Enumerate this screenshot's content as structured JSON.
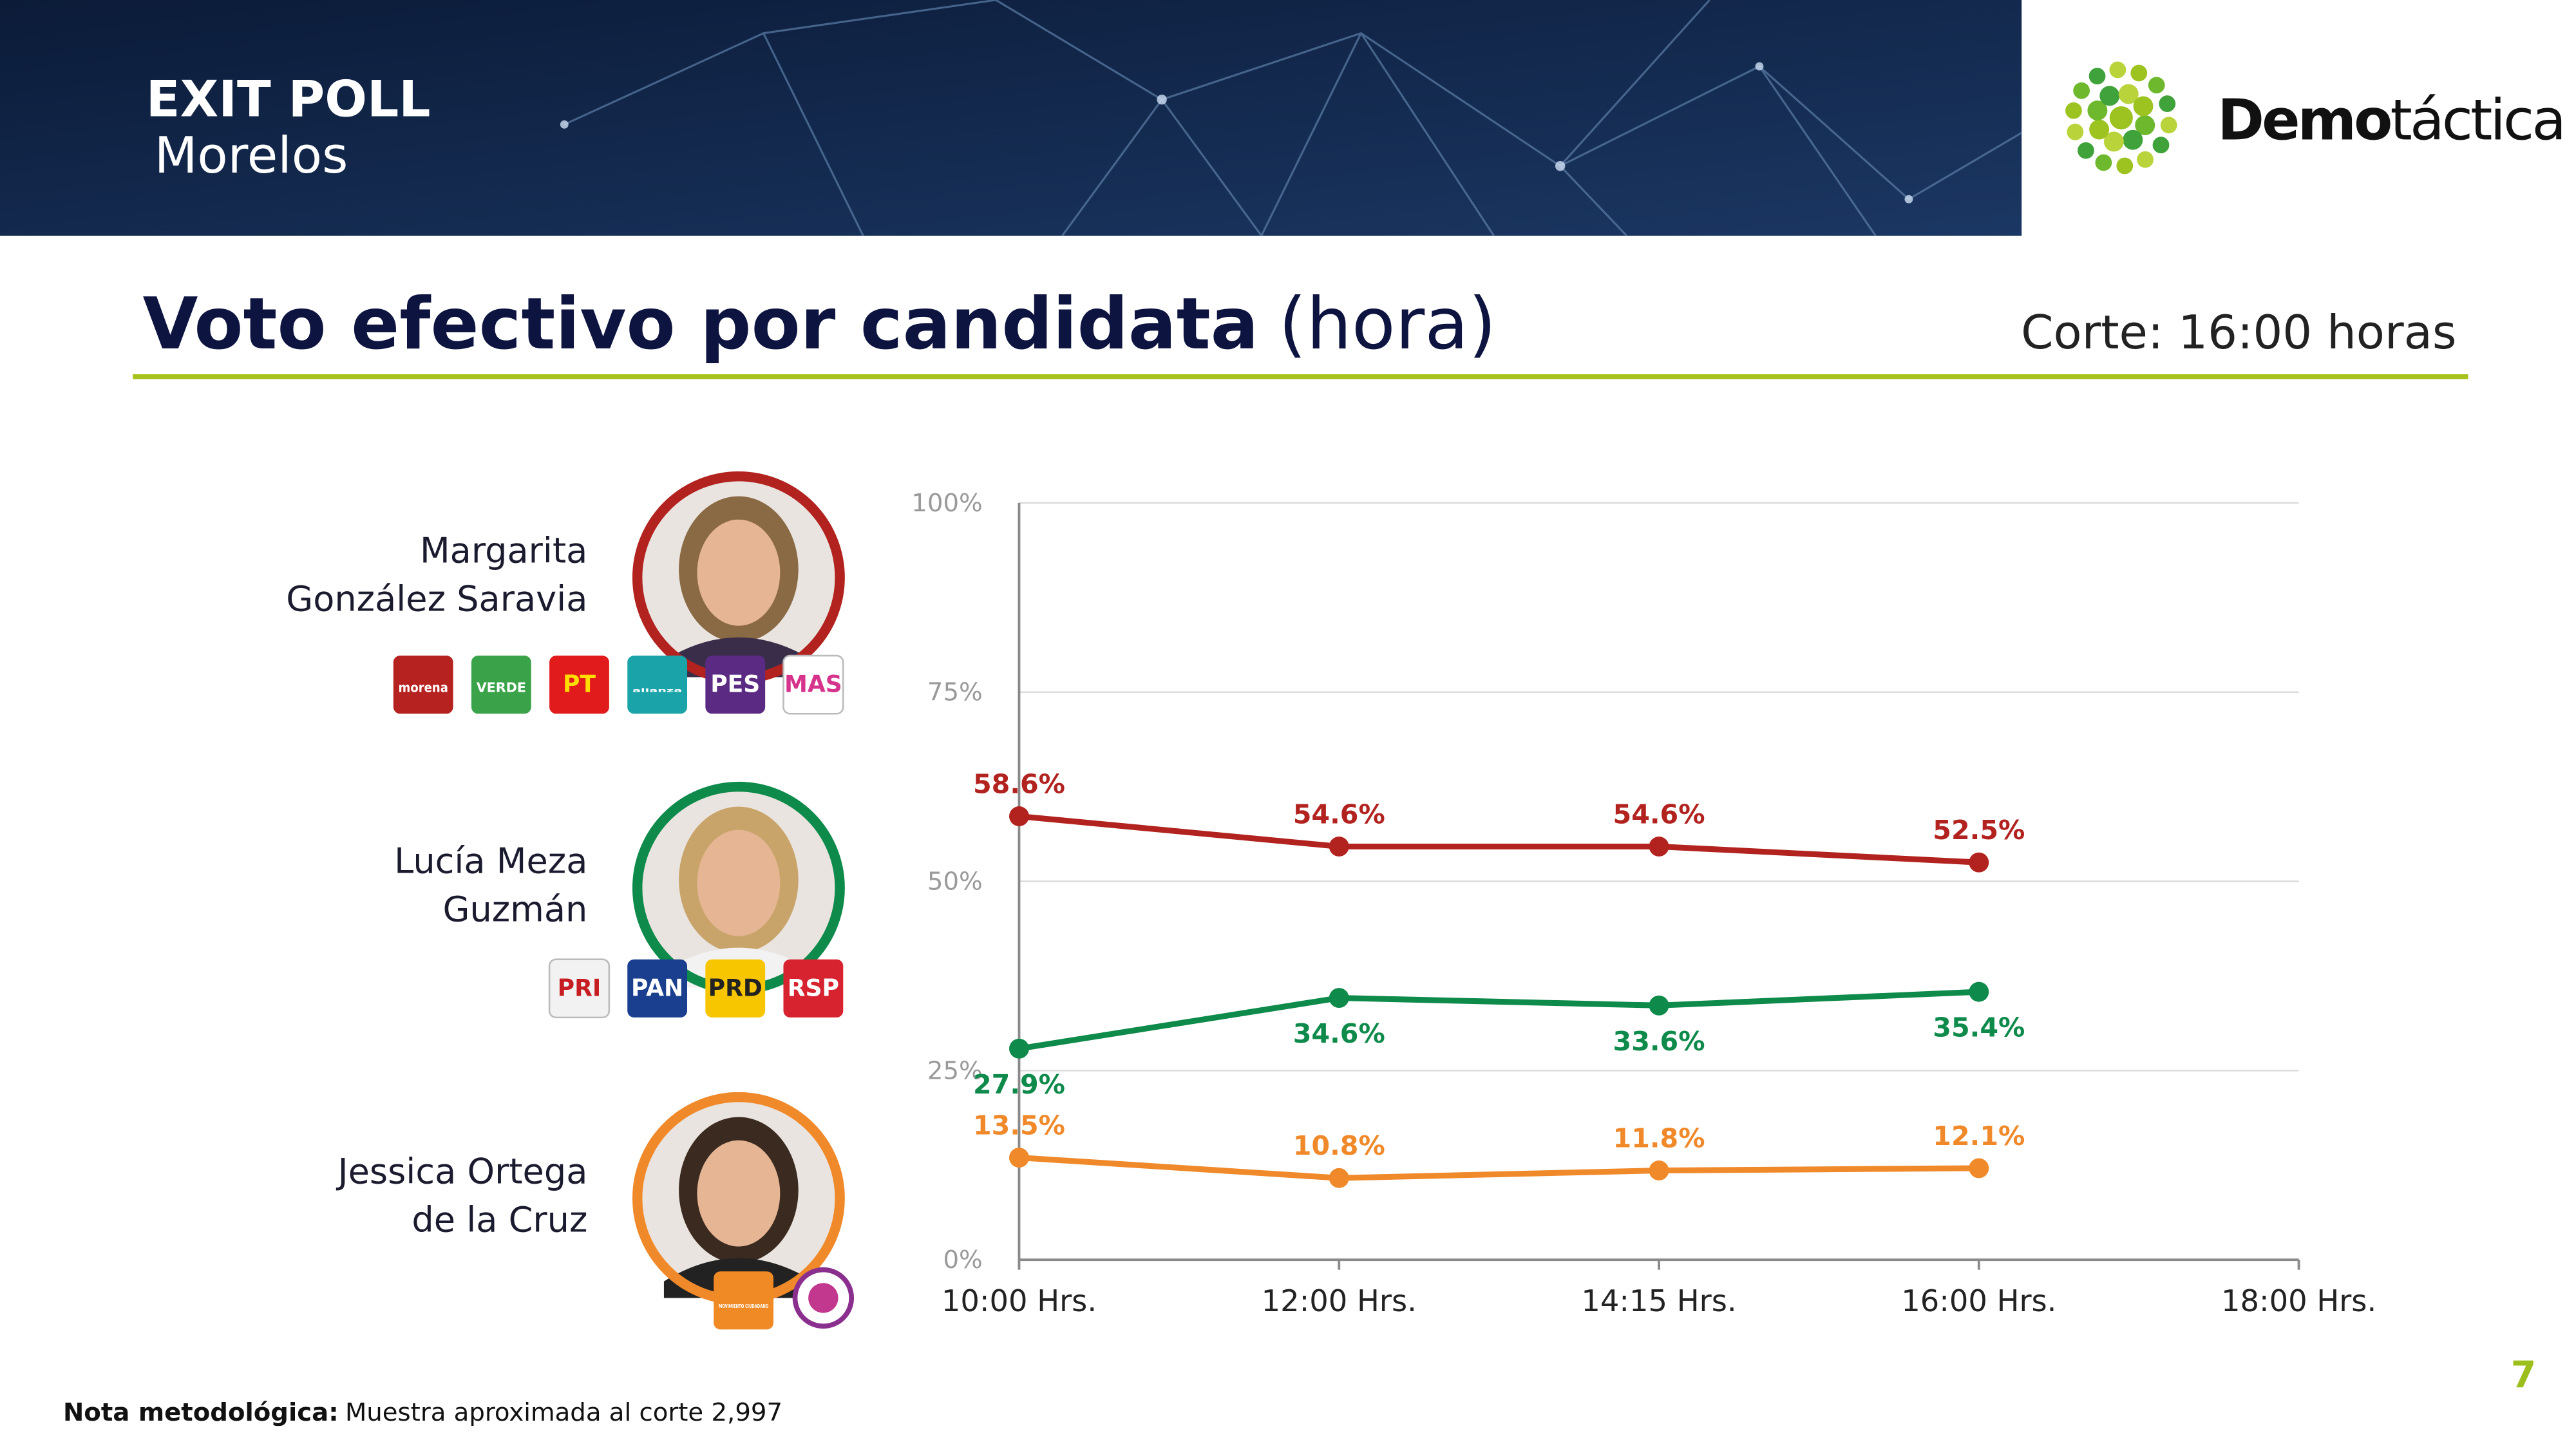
{
  "header": {
    "title": "EXIT POLL",
    "subtitle": "Morelos",
    "brand": {
      "bold": "Demo",
      "light": "táctica"
    }
  },
  "heading": {
    "title": "Voto efectivo por candidata",
    "suffix": "(hora)",
    "cutoff": "Corte: 16:00 horas"
  },
  "chart_data": {
    "type": "line",
    "categories": [
      "10:00 Hrs.",
      "12:00 Hrs.",
      "14:15 Hrs.",
      "16:00 Hrs.",
      "18:00 Hrs."
    ],
    "ylim": [
      0,
      100
    ],
    "yticks": [
      {
        "value": 0,
        "label": "0%"
      },
      {
        "value": 25,
        "label": "25%"
      },
      {
        "value": 50,
        "label": "50%"
      },
      {
        "value": 75,
        "label": "75%"
      },
      {
        "value": 100,
        "label": "100%"
      }
    ],
    "grid": true,
    "series": [
      {
        "name": "Margarita\nGonzález Saravia",
        "color": "#b22320",
        "values": [
          58.6,
          54.6,
          54.6,
          52.5,
          null
        ],
        "value_labels": [
          "58.6%",
          "54.6%",
          "54.6%",
          "52.5%",
          null
        ],
        "label_side": "above"
      },
      {
        "name": "Lucía Meza\nGuzmán",
        "color": "#0e8a4b",
        "values": [
          27.9,
          34.6,
          33.6,
          35.4,
          null
        ],
        "value_labels": [
          "27.9%",
          "34.6%",
          "33.6%",
          "35.4%",
          null
        ],
        "label_side": "below"
      },
      {
        "name": "Jessica Ortega\nde la Cruz",
        "color": "#f0892a",
        "values": [
          13.5,
          10.8,
          11.8,
          12.1,
          null
        ],
        "value_labels": [
          "13.5%",
          "10.8%",
          "11.8%",
          "12.1%",
          null
        ],
        "label_side": "above"
      }
    ]
  },
  "logos": [
    [
      "morena",
      "VERDE",
      "PT",
      "alianza",
      "PES",
      "MAS"
    ],
    [
      "PRI",
      "PAN",
      "PRD",
      "RSP"
    ],
    [
      "MOVIMIENTO CIUDADANO"
    ]
  ],
  "footer": {
    "note_label": "Nota metodológica:",
    "note": "Muestra aproximada al corte 2,997",
    "page": "7"
  }
}
